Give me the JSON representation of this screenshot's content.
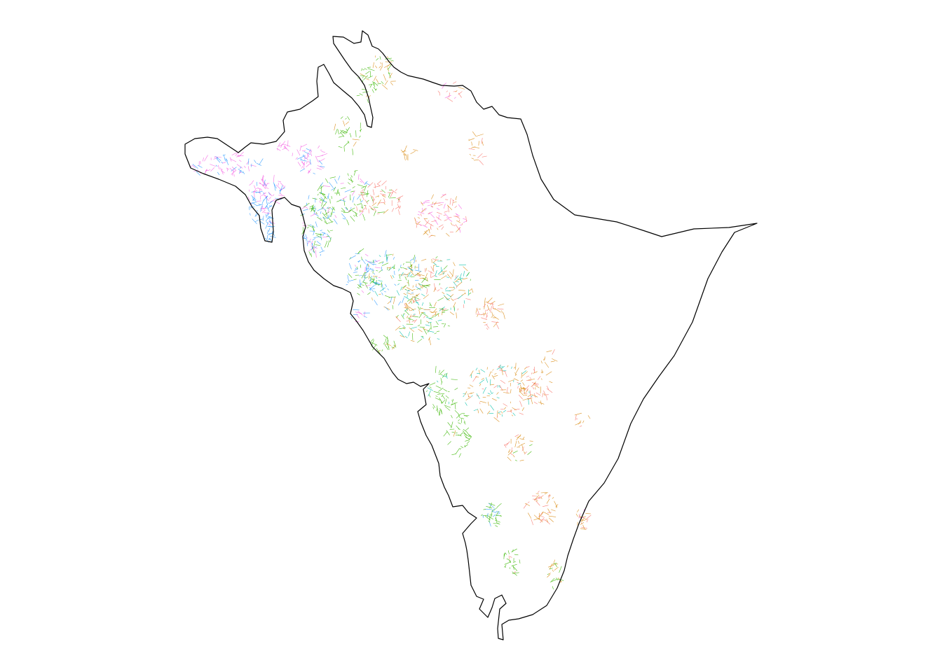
{
  "map": {
    "title": "",
    "legend": null,
    "background_color": "#ffffff",
    "outline_color": "#000000",
    "classes": [
      {
        "id": "red",
        "color": "#f8766d"
      },
      {
        "id": "orange",
        "color": "#d98a12"
      },
      {
        "id": "green",
        "color": "#39b600"
      },
      {
        "id": "teal",
        "color": "#00bfa8"
      },
      {
        "id": "blue",
        "color": "#2f9bff"
      },
      {
        "id": "pink",
        "color": "#f564e3"
      }
    ]
  }
}
